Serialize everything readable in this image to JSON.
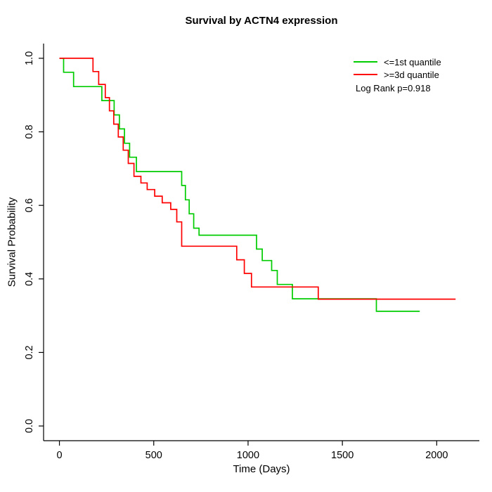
{
  "chart_data": {
    "type": "line",
    "subtype": "kaplan-meier-step",
    "title": "Survival by ACTN4 expression",
    "xlabel": "Time (Days)",
    "ylabel": "Survival Probability",
    "xlim": [
      0,
      2100
    ],
    "ylim": [
      0.0,
      1.0
    ],
    "x_ticks": [
      0,
      500,
      1000,
      1500,
      2000
    ],
    "y_ticks": [
      0.0,
      0.2,
      0.4,
      0.6,
      0.8,
      1.0
    ],
    "grid": false,
    "legend_position": "top-right",
    "annotation": "Log Rank p=0.918",
    "series": [
      {
        "name": "<=1st quantile",
        "color": "#00CC00",
        "end": 1910,
        "points": [
          [
            0,
            1.0
          ],
          [
            22,
            0.962
          ],
          [
            75,
            0.923
          ],
          [
            225,
            0.885
          ],
          [
            290,
            0.846
          ],
          [
            318,
            0.808
          ],
          [
            345,
            0.769
          ],
          [
            372,
            0.731
          ],
          [
            408,
            0.692
          ],
          [
            648,
            0.654
          ],
          [
            668,
            0.615
          ],
          [
            688,
            0.577
          ],
          [
            712,
            0.538
          ],
          [
            740,
            0.519
          ],
          [
            1045,
            0.481
          ],
          [
            1075,
            0.45
          ],
          [
            1125,
            0.423
          ],
          [
            1155,
            0.385
          ],
          [
            1235,
            0.346
          ],
          [
            1680,
            0.312
          ]
        ]
      },
      {
        "name": ">=3d quantile",
        "color": "#FF0000",
        "end": 2100,
        "points": [
          [
            0,
            1.0
          ],
          [
            178,
            0.964
          ],
          [
            208,
            0.929
          ],
          [
            243,
            0.893
          ],
          [
            265,
            0.857
          ],
          [
            288,
            0.821
          ],
          [
            312,
            0.786
          ],
          [
            338,
            0.75
          ],
          [
            365,
            0.714
          ],
          [
            395,
            0.679
          ],
          [
            432,
            0.661
          ],
          [
            465,
            0.643
          ],
          [
            505,
            0.625
          ],
          [
            545,
            0.607
          ],
          [
            590,
            0.589
          ],
          [
            622,
            0.555
          ],
          [
            648,
            0.489
          ],
          [
            940,
            0.452
          ],
          [
            980,
            0.415
          ],
          [
            1018,
            0.378
          ],
          [
            1372,
            0.345
          ]
        ]
      }
    ]
  }
}
